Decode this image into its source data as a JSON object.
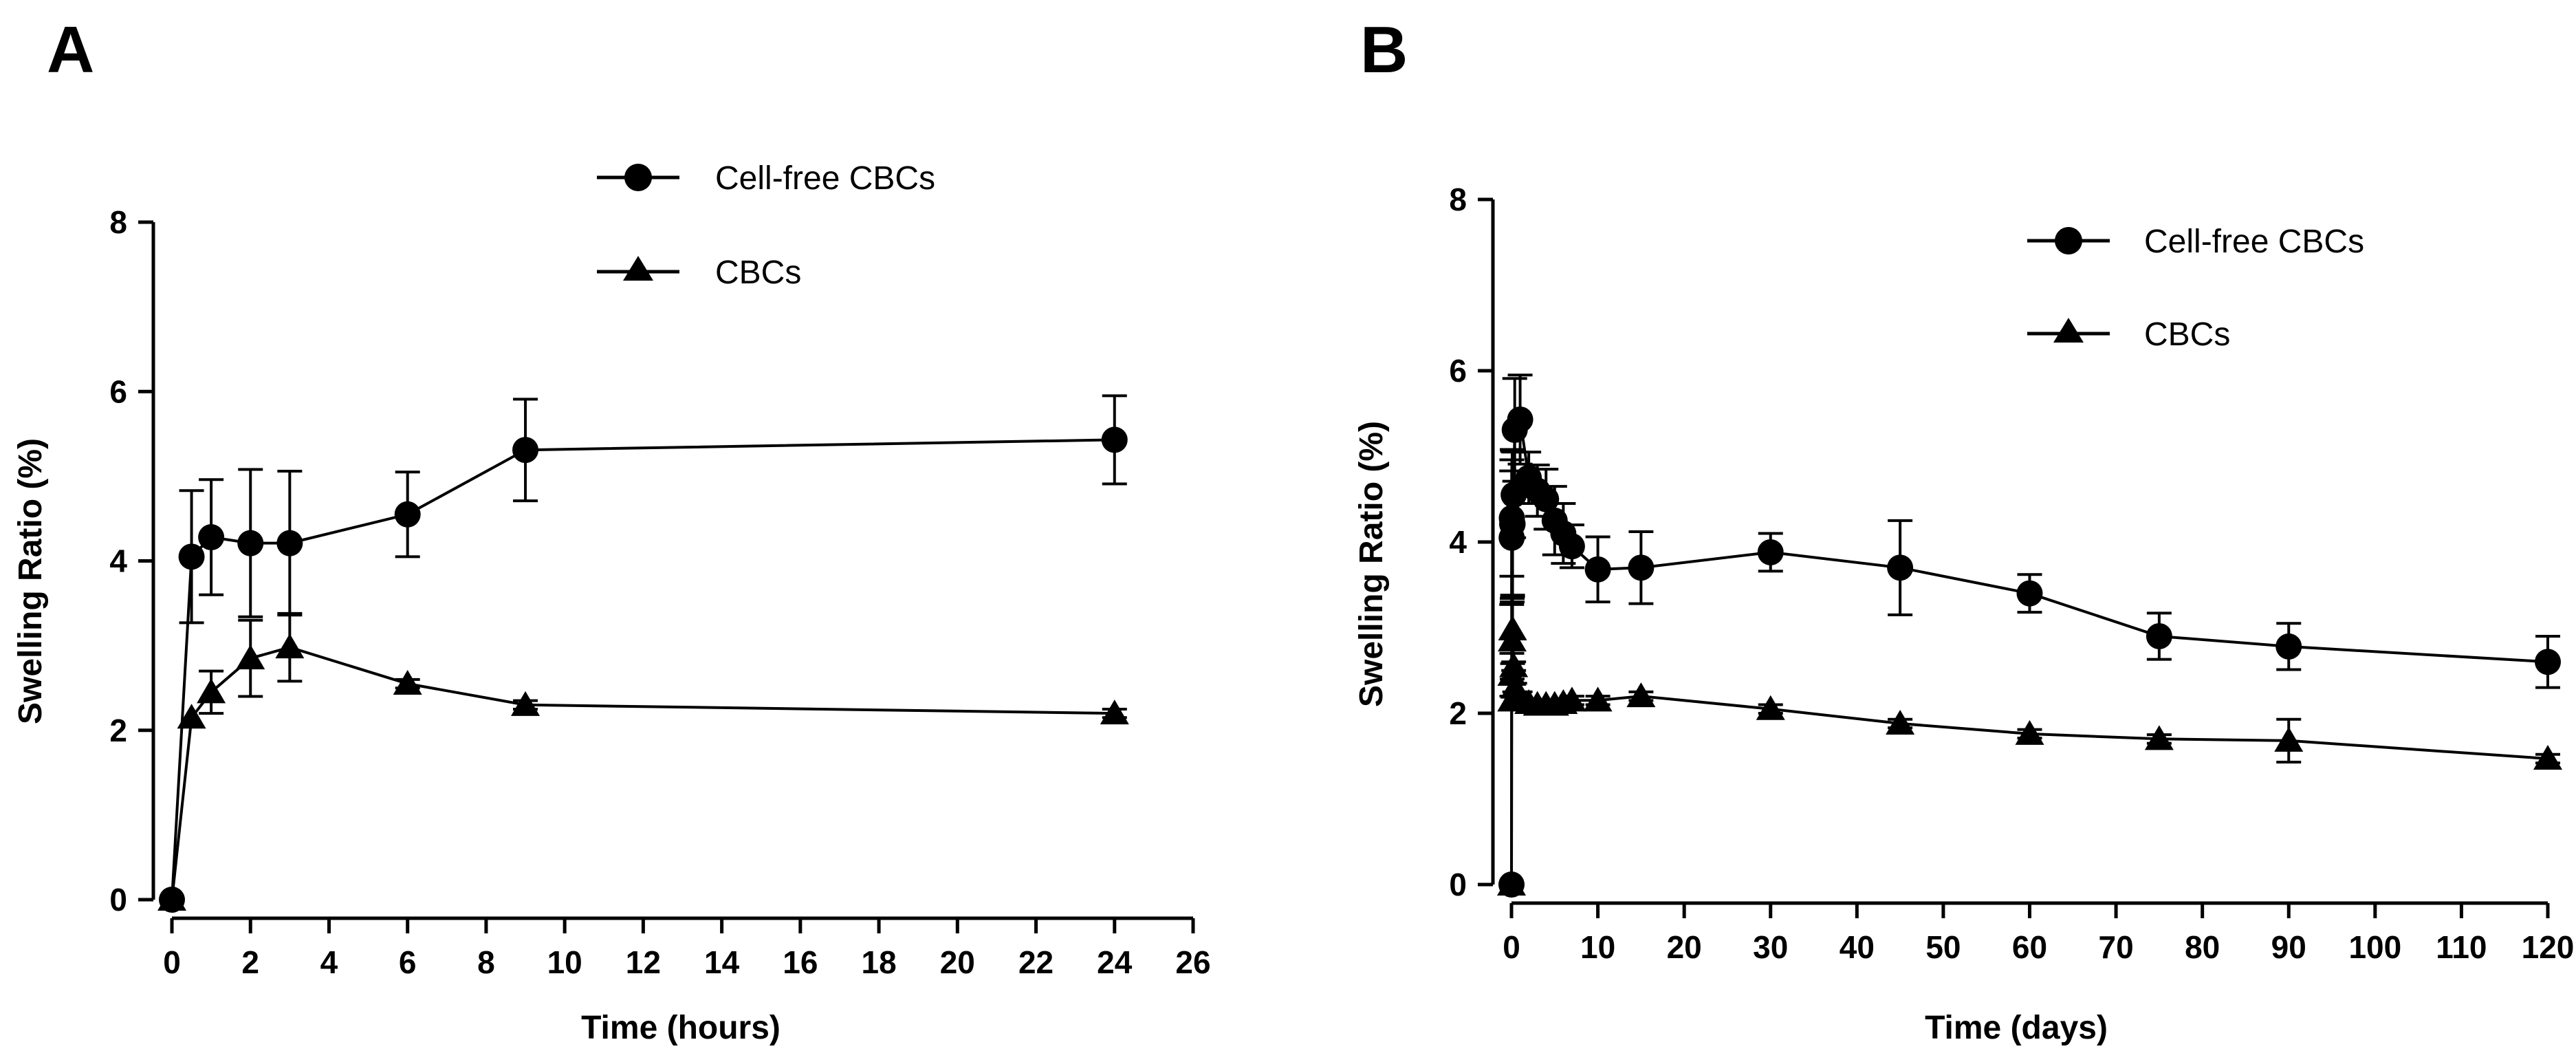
{
  "chart_data": [
    {
      "type": "line",
      "panel_label": "A",
      "title": "",
      "xlabel": "Time (hours)",
      "ylabel": "Swelling Ratio (%)",
      "xlim": [
        0,
        26
      ],
      "ylim": [
        0,
        8
      ],
      "xticks": [
        0,
        2,
        4,
        6,
        8,
        10,
        12,
        14,
        16,
        18,
        20,
        22,
        24,
        26
      ],
      "yticks": [
        0,
        2,
        4,
        6,
        8
      ],
      "grid": false,
      "legend_position": "top-center",
      "series": [
        {
          "name": "Cell-free CBCs",
          "marker": "circle",
          "x": [
            0,
            0.5,
            1,
            2,
            3,
            6,
            9,
            24
          ],
          "y": [
            0,
            4.05,
            4.28,
            4.21,
            4.21,
            4.55,
            5.31,
            5.43
          ],
          "err": [
            0,
            0.78,
            0.68,
            0.87,
            0.85,
            0.5,
            0.6,
            0.52
          ]
        },
        {
          "name": "CBCs",
          "marker": "triangle",
          "x": [
            0,
            0.5,
            1,
            2,
            3,
            6,
            9,
            24
          ],
          "y": [
            0,
            2.15,
            2.45,
            2.85,
            2.98,
            2.55,
            2.3,
            2.2
          ],
          "err": [
            0,
            0,
            0.25,
            0.45,
            0.4,
            0.05,
            0.05,
            0.05
          ]
        }
      ]
    },
    {
      "type": "line",
      "panel_label": "B",
      "title": "",
      "xlabel": "Time (days)",
      "ylabel": "Swelling Ratio (%)",
      "xlim": [
        0,
        120
      ],
      "ylim": [
        0,
        8
      ],
      "xticks": [
        0,
        10,
        20,
        30,
        40,
        50,
        60,
        70,
        80,
        90,
        100,
        110,
        120
      ],
      "yticks": [
        0,
        2,
        4,
        6,
        8
      ],
      "grid": false,
      "legend_position": "top-right",
      "series": [
        {
          "name": "Cell-free CBCs",
          "marker": "circle",
          "x": [
            0,
            0.02,
            0.04,
            0.08,
            0.125,
            0.25,
            0.375,
            1,
            2,
            3,
            4,
            5,
            6,
            7,
            10,
            15,
            30,
            45,
            60,
            75,
            90,
            120
          ],
          "y": [
            0,
            4.05,
            4.28,
            4.21,
            4.21,
            4.55,
            5.31,
            5.43,
            4.75,
            4.6,
            4.5,
            4.25,
            4.1,
            3.95,
            3.68,
            3.7,
            3.88,
            3.7,
            3.4,
            2.9,
            2.78,
            2.6
          ],
          "err": [
            0,
            0.78,
            0.68,
            0.87,
            0.85,
            0.5,
            0.6,
            0.52,
            0.3,
            0.3,
            0.35,
            0.4,
            0.35,
            0.25,
            0.38,
            0.42,
            0.22,
            0.55,
            0.22,
            0.27,
            0.27,
            0.3
          ]
        },
        {
          "name": "CBCs",
          "marker": "triangle",
          "x": [
            0,
            0.02,
            0.04,
            0.08,
            0.125,
            0.25,
            0.375,
            1,
            2,
            3,
            4,
            5,
            6,
            7,
            10,
            15,
            30,
            45,
            60,
            75,
            90,
            120
          ],
          "y": [
            0,
            2.15,
            2.45,
            2.85,
            2.98,
            2.55,
            2.3,
            2.2,
            2.12,
            2.1,
            2.1,
            2.1,
            2.12,
            2.15,
            2.15,
            2.2,
            2.05,
            1.88,
            1.76,
            1.7,
            1.68,
            1.47
          ],
          "err": [
            0,
            0,
            0.25,
            0.45,
            0.4,
            0.05,
            0.05,
            0.05,
            0.05,
            0.05,
            0.05,
            0.05,
            0.05,
            0.05,
            0.05,
            0.05,
            0.05,
            0.05,
            0.05,
            0.05,
            0.25,
            0.05
          ]
        }
      ]
    }
  ]
}
